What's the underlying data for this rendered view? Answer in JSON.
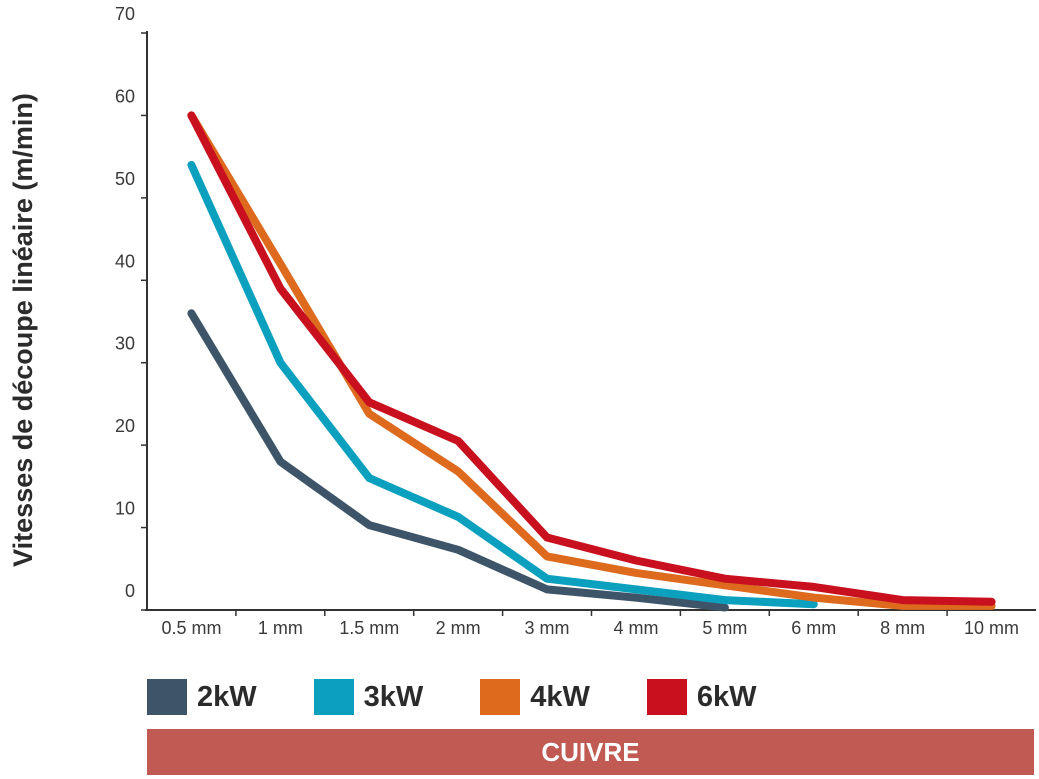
{
  "chart_data": {
    "type": "line",
    "ylabel": "Vitesses de découpe linéaire (m/min)",
    "xlabel": "",
    "categories": [
      "0.5 mm",
      "1 mm",
      "1.5 mm",
      "2 mm",
      "3 mm",
      "4 mm",
      "5 mm",
      "6 mm",
      "8 mm",
      "10 mm"
    ],
    "yticks": [
      "70",
      "60",
      "50",
      "40",
      "30",
      "20",
      "10",
      "0"
    ],
    "ylim": [
      0,
      70
    ],
    "grid": false,
    "legend_position": "bottom",
    "series": [
      {
        "name": "2kW",
        "color": "#3e5468",
        "values": [
          36,
          18,
          10.3,
          7.3,
          2.5,
          1.5,
          0.3,
          null,
          null,
          null
        ]
      },
      {
        "name": "3kW",
        "color": "#0aa0be",
        "values": [
          54,
          30,
          16,
          11.3,
          3.8,
          2.5,
          1.2,
          0.7,
          null,
          null
        ]
      },
      {
        "name": "4kW",
        "color": "#de6a1e",
        "values": [
          60,
          42,
          23.8,
          16.8,
          6.5,
          4.5,
          3,
          1.5,
          0.5,
          0.5
        ]
      },
      {
        "name": "6kW",
        "color": "#c8101e",
        "values": [
          60,
          39,
          25.2,
          20.5,
          8.8,
          6,
          3.8,
          2.8,
          1.2,
          1
        ]
      }
    ]
  },
  "legend": {
    "items": [
      {
        "label": "2kW",
        "color": "#3e5468"
      },
      {
        "label": "3kW",
        "color": "#0aa0be"
      },
      {
        "label": "4kW",
        "color": "#de6a1e"
      },
      {
        "label": "6kW",
        "color": "#c8101e"
      }
    ]
  },
  "banner": {
    "label": "CUIVRE",
    "color": "#c05a52"
  }
}
